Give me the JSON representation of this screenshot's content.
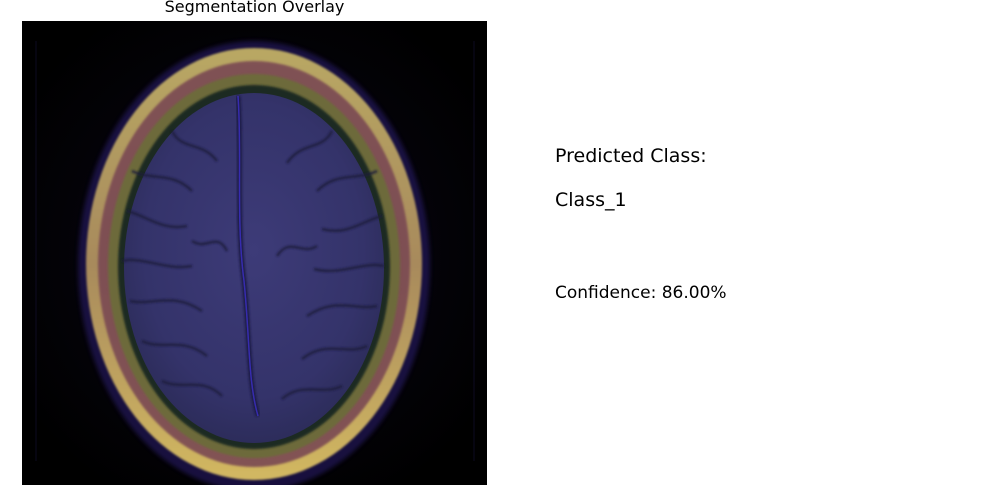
{
  "overlay": {
    "title": "Segmentation Overlay",
    "image_description_icon": "brain-mri-axial-scan"
  },
  "prediction": {
    "label": "Predicted Class:",
    "value": "Class_1",
    "confidence_text": "Confidence: 86.00%"
  },
  "colors": {
    "background": "#ffffff",
    "scan_background": "#000000",
    "skull_ring": "#c9a85a",
    "brain_tissue": "#3a3a72",
    "overlay_tint": "#4b3bd0"
  }
}
